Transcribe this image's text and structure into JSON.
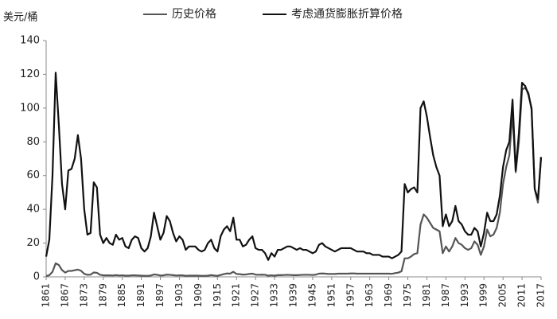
{
  "chart_data": {
    "type": "line",
    "ylabel": "美元/桶",
    "xlim": [
      1861,
      2017
    ],
    "xticks": [
      1861,
      1867,
      1873,
      1879,
      1885,
      1891,
      1897,
      1903,
      1909,
      1915,
      1921,
      1927,
      1933,
      1939,
      1945,
      1951,
      1957,
      1963,
      1969,
      1975,
      1981,
      1987,
      1993,
      1999,
      2005,
      2011,
      2017
    ],
    "ylim": [
      0,
      140
    ],
    "yticks": [
      0,
      20,
      40,
      60,
      80,
      100,
      120,
      140
    ],
    "grid": false,
    "legend": "top",
    "x": [
      1861,
      1862,
      1863,
      1864,
      1865,
      1866,
      1867,
      1868,
      1869,
      1870,
      1871,
      1872,
      1873,
      1874,
      1875,
      1876,
      1877,
      1878,
      1879,
      1880,
      1881,
      1882,
      1883,
      1884,
      1885,
      1886,
      1887,
      1888,
      1889,
      1890,
      1891,
      1892,
      1893,
      1894,
      1895,
      1896,
      1897,
      1898,
      1899,
      1900,
      1901,
      1902,
      1903,
      1904,
      1905,
      1906,
      1907,
      1908,
      1909,
      1910,
      1911,
      1912,
      1913,
      1914,
      1915,
      1916,
      1917,
      1918,
      1919,
      1920,
      1921,
      1922,
      1923,
      1924,
      1925,
      1926,
      1927,
      1928,
      1929,
      1930,
      1931,
      1932,
      1933,
      1934,
      1935,
      1936,
      1937,
      1938,
      1939,
      1940,
      1941,
      1942,
      1943,
      1944,
      1945,
      1946,
      1947,
      1948,
      1949,
      1950,
      1951,
      1952,
      1953,
      1954,
      1955,
      1956,
      1957,
      1958,
      1959,
      1960,
      1961,
      1962,
      1963,
      1964,
      1965,
      1966,
      1967,
      1968,
      1969,
      1970,
      1971,
      1972,
      1973,
      1974,
      1975,
      1976,
      1977,
      1978,
      1979,
      1980,
      1981,
      1982,
      1983,
      1984,
      1985,
      1986,
      1987,
      1988,
      1989,
      1990,
      1991,
      1992,
      1993,
      1994,
      1995,
      1996,
      1997,
      1998,
      1999,
      2000,
      2001,
      2002,
      2003,
      2004,
      2005,
      2006,
      2007,
      2008,
      2009,
      2010,
      2011,
      2012,
      2013,
      2014,
      2015,
      2016,
      2017
    ],
    "series": [
      {
        "name": "历史价格",
        "color": "#555555",
        "values": [
          0.5,
          1,
          3,
          8,
          7,
          4,
          2.5,
          3.5,
          3.5,
          3.9,
          4.3,
          3.6,
          1.8,
          1.2,
          1.3,
          2.6,
          2.4,
          1.2,
          0.9,
          0.9,
          0.9,
          0.8,
          1,
          0.8,
          0.9,
          0.7,
          0.7,
          0.9,
          0.9,
          0.8,
          0.7,
          0.6,
          0.6,
          0.8,
          1.4,
          1.2,
          0.8,
          0.9,
          1.3,
          1.2,
          1,
          0.8,
          0.9,
          0.9,
          0.6,
          0.7,
          0.7,
          0.7,
          0.7,
          0.6,
          0.6,
          0.7,
          1,
          0.8,
          0.6,
          1.1,
          1.6,
          2,
          1.9,
          3,
          1.7,
          1.6,
          1.3,
          1.4,
          1.7,
          1.9,
          1.3,
          1.2,
          1.3,
          1.2,
          0.7,
          0.9,
          0.7,
          1,
          1,
          1.1,
          1.2,
          1.1,
          1,
          1,
          1.1,
          1.2,
          1.2,
          1.2,
          1.1,
          1.3,
          1.9,
          2,
          1.9,
          1.7,
          1.7,
          1.7,
          1.9,
          1.9,
          1.9,
          1.9,
          2,
          2,
          1.9,
          1.9,
          1.9,
          1.9,
          1.9,
          1.9,
          1.9,
          1.9,
          1.9,
          1.9,
          1.9,
          1.8,
          2.2,
          2.5,
          3.3,
          11,
          11,
          12,
          13.5,
          14,
          31,
          37,
          35,
          32,
          29,
          28,
          27,
          14,
          18,
          15,
          18,
          23,
          20,
          19,
          17,
          16,
          17,
          21,
          19,
          13,
          18,
          28,
          24,
          25,
          29,
          38,
          55,
          65,
          72,
          97,
          62,
          80,
          111,
          112,
          109,
          99,
          52,
          44,
          71
        ]
      },
      {
        "name": "考虑通货膨胀折算价格",
        "color": "#111111",
        "values": [
          12,
          22,
          60,
          121,
          90,
          55,
          40,
          63,
          64,
          70,
          84,
          70,
          40,
          25,
          26,
          56,
          53,
          25,
          20,
          23,
          20,
          19,
          25,
          22,
          23,
          18,
          17,
          22,
          24,
          23,
          17,
          15,
          17,
          24,
          38,
          30,
          22,
          26,
          36,
          33,
          26,
          21,
          24,
          22,
          16,
          18,
          18,
          18,
          16,
          15,
          16,
          20,
          22,
          17,
          15,
          24,
          28,
          30,
          27,
          35,
          22,
          22,
          18,
          19,
          22,
          24,
          17,
          16,
          16,
          14,
          10,
          14,
          12,
          16,
          16,
          17,
          18,
          18,
          17,
          16,
          17,
          16,
          16,
          15,
          14,
          15,
          19,
          20,
          18,
          17,
          16,
          15,
          16,
          17,
          17,
          17,
          17,
          16,
          15,
          15,
          15,
          14,
          14,
          13,
          13,
          13,
          12,
          12,
          12,
          11,
          12,
          13,
          15,
          55,
          50,
          52,
          53,
          50,
          100,
          104,
          95,
          83,
          72,
          65,
          60,
          30,
          37,
          30,
          33,
          42,
          33,
          31,
          27,
          25,
          25,
          29,
          27,
          18,
          26,
          38,
          33,
          33,
          37,
          48,
          65,
          75,
          80,
          105,
          63,
          85,
          115,
          113,
          108,
          100,
          52,
          46,
          71
        ]
      }
    ]
  }
}
